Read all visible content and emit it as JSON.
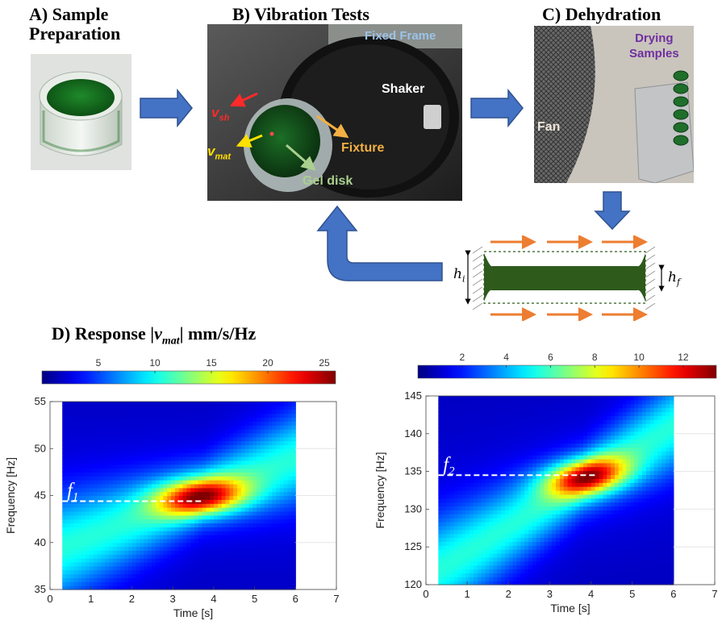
{
  "panels": {
    "a": {
      "title_line1": "A) Sample",
      "title_line2": "Preparation"
    },
    "b": {
      "title": "B) Vibration Tests",
      "fixed_frame": "Fixed Frame",
      "shaker": "Shaker",
      "fixture": "Fixture",
      "gel_disk": "Gel disk",
      "v_sh": "v",
      "v_sh_sub": "sh",
      "v_mat": "v",
      "v_mat_sub": "mat"
    },
    "c": {
      "title": "C) Dehydration",
      "drying_line1": "Drying",
      "drying_line2": "Samples",
      "fan": "Fan"
    },
    "d": {
      "title_prefix": "D) Response |",
      "title_v": "v",
      "title_sub": "mat",
      "title_suffix": "| mm/s/Hz"
    }
  },
  "schematic": {
    "h_i": "h",
    "h_i_sub": "i",
    "h_f": "h",
    "h_f_sub": "f"
  },
  "colors": {
    "arrow_blue": "#4472C4",
    "arrow_blue_dark": "#2F528F",
    "flow_orange": "#ED7D31",
    "gel_green": "#2E5A1C",
    "v_sh_red": "#FF2A2A",
    "v_mat_yellow": "#FFE000",
    "fixture_orange": "#F4B042",
    "gel_green_label": "#A9D08E",
    "frame_blue": "#9DC3E6",
    "drying_purple": "#7030A0"
  },
  "chart_data": [
    {
      "type": "heatmap",
      "title": "",
      "xlabel": "Time [s]",
      "ylabel": "Frequency [Hz]",
      "xlim": [
        0,
        7
      ],
      "ylim": [
        35,
        55
      ],
      "xticks": [
        "0",
        "1",
        "2",
        "3",
        "4",
        "5",
        "6",
        "7"
      ],
      "yticks": [
        "35",
        "40",
        "45",
        "50",
        "55"
      ],
      "data_extent_x": [
        0.3,
        6
      ],
      "colorbar": {
        "ticks": [
          "5",
          "10",
          "15",
          "20",
          "25"
        ],
        "range": [
          0,
          26
        ]
      },
      "ridge": {
        "x": [
          0.3,
          6.0
        ],
        "y": [
          39.5,
          49.0
        ],
        "peak_x": 3.75,
        "peak_y": 44.8,
        "peak_value": 26
      },
      "marker": {
        "label": "f",
        "label_sub": "1",
        "y": 44.4,
        "x_range": [
          0.3,
          3.7
        ]
      }
    },
    {
      "type": "heatmap",
      "title": "",
      "xlabel": "Time [s]",
      "ylabel": "Frequency [Hz]",
      "xlim": [
        0,
        7
      ],
      "ylim": [
        120,
        145
      ],
      "xticks": [
        "0",
        "1",
        "2",
        "3",
        "4",
        "5",
        "6",
        "7"
      ],
      "yticks": [
        "120",
        "125",
        "130",
        "135",
        "140",
        "145"
      ],
      "data_extent_x": [
        0.3,
        6
      ],
      "colorbar": {
        "ticks": [
          "2",
          "4",
          "6",
          "8",
          "10",
          "12"
        ],
        "range": [
          0,
          13.5
        ]
      },
      "ridge": {
        "x": [
          0.3,
          6.0
        ],
        "y": [
          122,
          141
        ],
        "peak_x": 3.8,
        "peak_y": 134.5,
        "peak_value": 13.5
      },
      "marker": {
        "label": "f",
        "label_sub": "2",
        "y": 134.5,
        "x_range": [
          0.3,
          4.1
        ]
      }
    }
  ]
}
